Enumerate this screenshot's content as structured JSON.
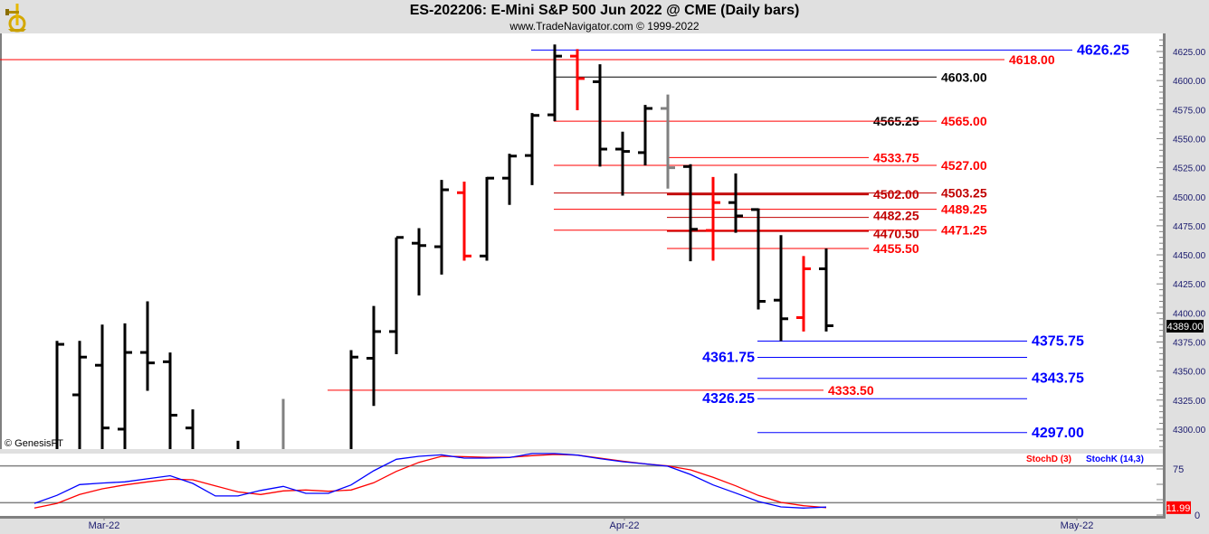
{
  "header": {
    "title": "ES-202206:  E-Mini S&P 500 Jun 2022 @ CME  (Daily bars)",
    "subtitle": "www.TradeNavigator.com © 1999-2022",
    "copyright": "© GenesisFT"
  },
  "colors": {
    "up_bar": "#000000",
    "red_bar": "#ff0000",
    "gray_bar": "#808080",
    "stoch_k": "#0000ff",
    "stoch_d": "#ff0000",
    "level_red": "#ff0000",
    "level_darkred": "#c00000",
    "level_blue": "#0000ff",
    "level_black": "#000000"
  },
  "chart_data": [
    {
      "type": "ohlc",
      "title": "ES-202206:  E-Mini S&P 500 Jun 2022 @ CME  (Daily bars)",
      "ylim": [
        4283,
        4638
      ],
      "y_ticks": [
        "4625.00",
        "4600.00",
        "4575.00",
        "4550.00",
        "4525.00",
        "4500.00",
        "4475.00",
        "4450.00",
        "4425.00",
        "4400.00",
        "4375.00",
        "4350.00",
        "4325.00",
        "4300.00"
      ],
      "x_tick_labels": [
        {
          "label": "Mar-22",
          "bar": 3
        },
        {
          "label": "Apr-22",
          "bar": 26
        },
        {
          "label": "May-22",
          "bar": 46
        }
      ],
      "last_price": "4389.00",
      "bars": [
        {
          "o": null,
          "h": null,
          "l": null,
          "c": null,
          "color": "black"
        },
        {
          "o": null,
          "h": 4376,
          "l": null,
          "c": 4373,
          "color": "black"
        },
        {
          "o": 4329.5,
          "h": 4376,
          "l": null,
          "c": 4362,
          "color": "black"
        },
        {
          "o": 4355,
          "h": 4390,
          "l": null,
          "c": 4301,
          "color": "black"
        },
        {
          "o": 4300,
          "h": 4391,
          "l": null,
          "c": 4366,
          "color": "black"
        },
        {
          "o": 4366,
          "h": 4410,
          "l": 4333,
          "c": 4357,
          "color": "black"
        },
        {
          "o": 4358,
          "h": 4366,
          "l": null,
          "c": 4312,
          "color": "black"
        },
        {
          "o": 4301,
          "h": 4317,
          "l": null,
          "c": null,
          "color": "black"
        },
        {
          "o": null,
          "h": null,
          "l": null,
          "c": null,
          "color": "black"
        },
        {
          "o": null,
          "h": 4290,
          "l": null,
          "c": null,
          "color": "black"
        },
        {
          "o": null,
          "h": null,
          "l": null,
          "c": null,
          "color": "black"
        },
        {
          "o": null,
          "h": 4326,
          "l": null,
          "c": null,
          "color": "gray"
        },
        {
          "o": null,
          "h": null,
          "l": null,
          "c": null,
          "color": "black"
        },
        {
          "o": null,
          "h": null,
          "l": null,
          "c": null,
          "color": "black"
        },
        {
          "o": null,
          "h": 4368,
          "l": null,
          "c": 4362,
          "color": "black"
        },
        {
          "o": 4361,
          "h": 4406,
          "l": 4320,
          "c": 4384,
          "color": "black"
        },
        {
          "o": 4384,
          "h": 4465,
          "l": 4364.5,
          "c": 4465,
          "color": "black"
        },
        {
          "o": 4460,
          "h": 4473,
          "l": 4415,
          "c": 4458,
          "color": "black"
        },
        {
          "o": 4457,
          "h": 4514.5,
          "l": 4433,
          "c": 4506,
          "color": "black"
        },
        {
          "o": 4503.5,
          "h": 4513,
          "l": 4445,
          "c": 4449,
          "color": "red"
        },
        {
          "o": 4449,
          "h": 4517,
          "l": 4445,
          "c": 4516,
          "color": "black"
        },
        {
          "o": 4516,
          "h": 4537,
          "l": 4493,
          "c": 4535,
          "color": "black"
        },
        {
          "o": 4535.5,
          "h": 4572,
          "l": 4510,
          "c": 4570,
          "color": "black"
        },
        {
          "o": 4570.5,
          "h": 4631,
          "l": 4565,
          "c": 4621,
          "color": "black"
        },
        {
          "o": 4621,
          "h": 4627,
          "l": 4574.5,
          "c": 4601.75,
          "color": "red"
        },
        {
          "o": 4599,
          "h": 4614,
          "l": 4526,
          "c": 4541,
          "color": "black"
        },
        {
          "o": 4541,
          "h": 4556,
          "l": 4501,
          "c": 4539,
          "color": "black"
        },
        {
          "o": 4538,
          "h": 4579,
          "l": 4527,
          "c": 4576,
          "color": "black"
        },
        {
          "o": 4576,
          "h": 4588,
          "l": 4507,
          "c": 4525,
          "color": "gray"
        },
        {
          "o": 4526,
          "h": 4528,
          "l": 4444.5,
          "c": 4472,
          "color": "black"
        },
        {
          "o": 4471,
          "h": 4517,
          "l": 4445,
          "c": 4495,
          "color": "red"
        },
        {
          "o": 4495,
          "h": 4520,
          "l": 4469,
          "c": 4483.5,
          "color": "black"
        },
        {
          "o": 4489,
          "h": 4490,
          "l": 4403,
          "c": 4410,
          "color": "black"
        },
        {
          "o": 4411,
          "h": 4467,
          "l": 4375.75,
          "c": 4395,
          "color": "black"
        },
        {
          "o": 4396,
          "h": 4449,
          "l": 4384,
          "c": 4438,
          "color": "red"
        },
        {
          "o": 4438,
          "h": 4455.5,
          "l": 4384,
          "c": 4389,
          "color": "black"
        }
      ],
      "levels": [
        {
          "value": 4626.25,
          "label": "4626.25",
          "color": "blue"
        },
        {
          "value": 4618.0,
          "label": "4618.00",
          "color": "red"
        },
        {
          "value": 4603.0,
          "label": "4603.00",
          "color": "black"
        },
        {
          "value": 4565.25,
          "label": "4565.25",
          "color": "black"
        },
        {
          "value": 4565.0,
          "label": "4565.00",
          "color": "red"
        },
        {
          "value": 4533.75,
          "label": "4533.75",
          "color": "red"
        },
        {
          "value": 4527.0,
          "label": "4527.00",
          "color": "red"
        },
        {
          "value": 4502.0,
          "label": "4502.00",
          "color": "darkred"
        },
        {
          "value": 4503.25,
          "label": "4503.25",
          "color": "darkred"
        },
        {
          "value": 4489.25,
          "label": "4489.25",
          "color": "red"
        },
        {
          "value": 4482.25,
          "label": "4482.25",
          "color": "darkred"
        },
        {
          "value": 4470.5,
          "label": "4470.50",
          "color": "darkred"
        },
        {
          "value": 4471.25,
          "label": "4471.25",
          "color": "red"
        },
        {
          "value": 4455.5,
          "label": "4455.50",
          "color": "red"
        },
        {
          "value": 4375.75,
          "label": "4375.75",
          "color": "blue"
        },
        {
          "value": 4361.75,
          "label": "4361.75",
          "color": "blue"
        },
        {
          "value": 4343.75,
          "label": "4343.75",
          "color": "blue"
        },
        {
          "value": 4333.5,
          "label": "4333.50",
          "color": "red"
        },
        {
          "value": 4326.25,
          "label": "4326.25",
          "color": "blue"
        },
        {
          "value": 4297.0,
          "label": "4297.00",
          "color": "blue"
        }
      ]
    },
    {
      "type": "line",
      "ylim": [
        0,
        100
      ],
      "y_ticks": [
        "75",
        "0"
      ],
      "gridlines": [
        80,
        20
      ],
      "legend_placement": "top-right",
      "last_value": "11.99",
      "series": [
        {
          "name": "StochD (3)",
          "color": "#ff0000",
          "values": [
            11.3,
            19,
            33.4,
            42.6,
            49,
            54,
            58.3,
            57.4,
            47.5,
            37.7,
            33.4,
            39.2,
            40.7,
            38.7,
            40.7,
            52.5,
            71,
            85.7,
            95.6,
            95,
            94,
            94,
            96.6,
            98.5,
            97.5,
            92.6,
            87.7,
            83.3,
            80,
            73.5,
            61.3,
            47.5,
            31.9,
            20.6,
            15.2,
            11.99
          ]
        },
        {
          "name": "StochK (14,3)",
          "color": "#0000ff",
          "values": [
            19,
            32,
            49.5,
            52,
            54,
            59,
            64,
            51.5,
            31,
            31,
            40,
            46.6,
            35.3,
            35.3,
            49,
            72,
            90.7,
            95.6,
            98,
            92.6,
            92.6,
            93.6,
            100,
            100,
            97.5,
            91.7,
            86.8,
            83.3,
            79.4,
            66,
            49,
            35.8,
            22,
            13.2,
            11.3,
            13
          ]
        }
      ]
    }
  ]
}
